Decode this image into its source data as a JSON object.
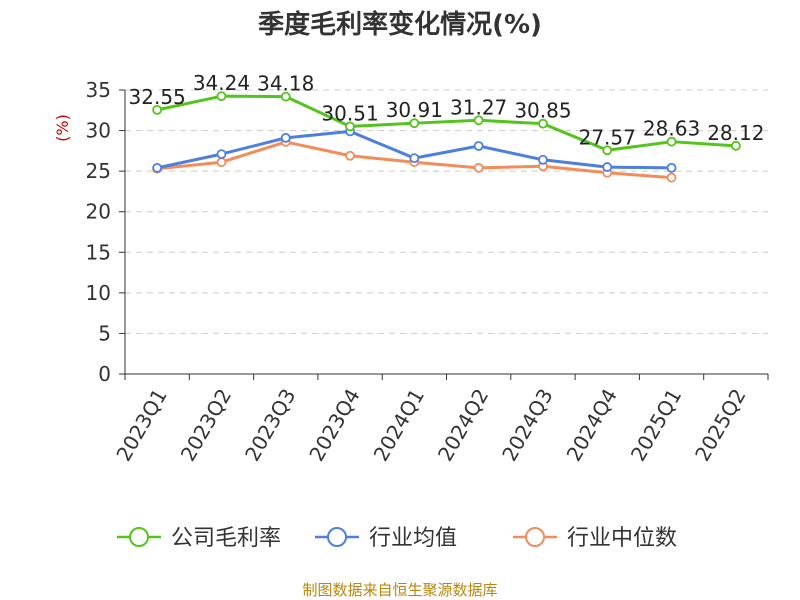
{
  "chart_data": {
    "type": "line",
    "title": "季度毛利率变化情况(%)",
    "ylabel": "(%)",
    "xlabel": "",
    "ylim": [
      0,
      35
    ],
    "yticks": [
      0,
      5,
      10,
      15,
      20,
      25,
      30,
      35
    ],
    "grid": true,
    "legend_position": "bottom",
    "categories": [
      "2023Q1",
      "2023Q2",
      "2023Q3",
      "2023Q4",
      "2024Q1",
      "2024Q2",
      "2024Q3",
      "2024Q4",
      "2025Q1",
      "2025Q2"
    ],
    "series": [
      {
        "name": "公司毛利率",
        "color": "#52c41a",
        "values": [
          32.55,
          34.24,
          34.18,
          30.51,
          30.91,
          31.27,
          30.85,
          27.57,
          28.63,
          28.12
        ],
        "show_labels": true
      },
      {
        "name": "行业均值",
        "color": "#4e7fe0",
        "values": [
          25.4,
          27.1,
          29.1,
          29.9,
          26.6,
          28.1,
          26.4,
          25.5,
          25.4,
          null
        ],
        "show_labels": false
      },
      {
        "name": "行业中位数",
        "color": "#f28c5a",
        "values": [
          25.3,
          26.1,
          28.6,
          26.9,
          26.1,
          25.4,
          25.6,
          24.8,
          24.2,
          null
        ],
        "show_labels": false
      }
    ],
    "source": "制图数据来自恒生聚源数据库"
  }
}
